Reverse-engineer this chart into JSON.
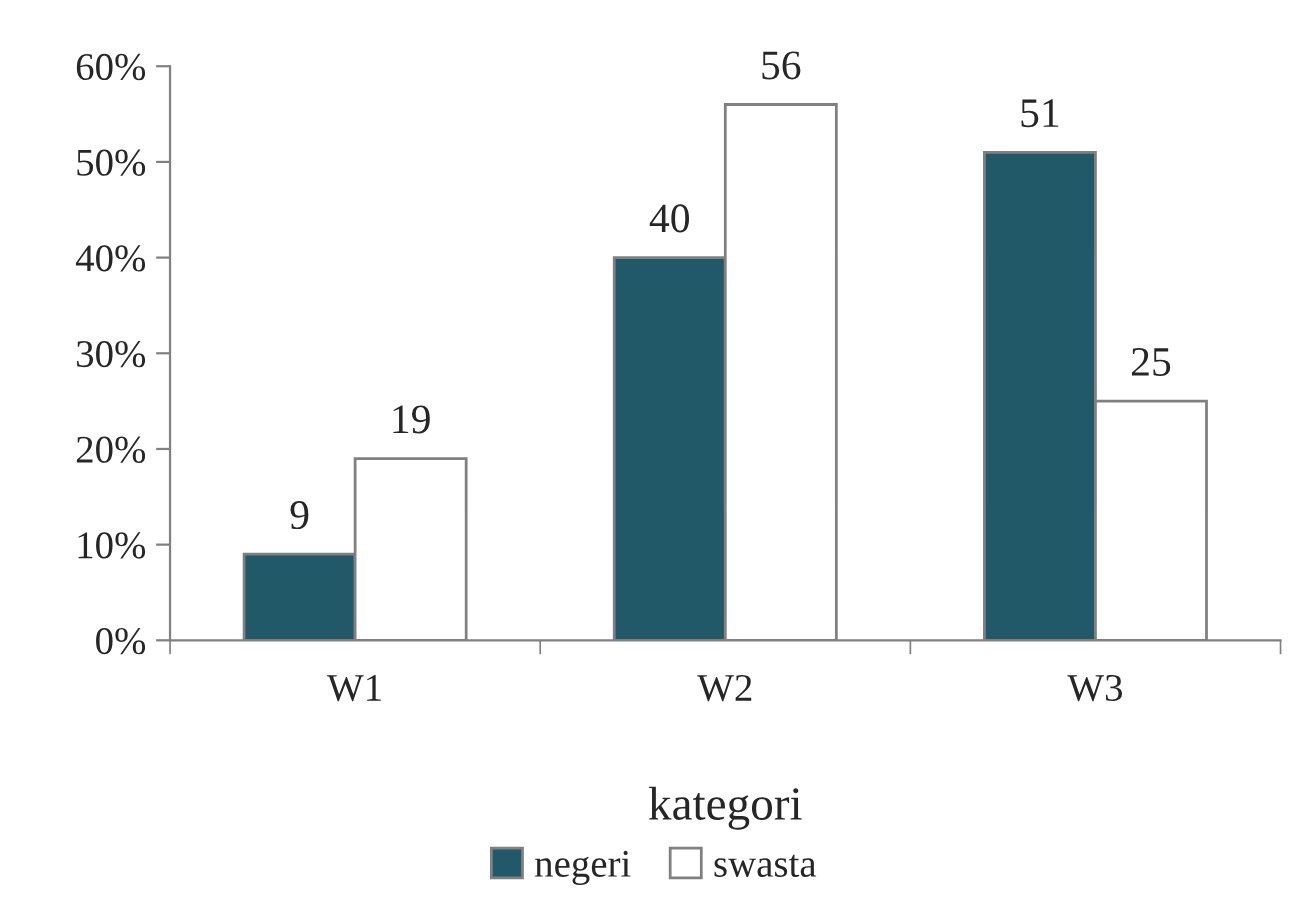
{
  "chart_data": {
    "type": "bar",
    "xlabel": "kategori",
    "categories": [
      "W1",
      "W2",
      "W3"
    ],
    "series": [
      {
        "name": "negeri",
        "color": "#215968",
        "values": [
          9,
          40,
          51
        ]
      },
      {
        "name": "swasta",
        "color": "#ffffff",
        "values": [
          19,
          56,
          25
        ]
      }
    ],
    "ylim": [
      0,
      60
    ],
    "yticks": [
      {
        "value": 0,
        "label": "0%"
      },
      {
        "value": 10,
        "label": "10%"
      },
      {
        "value": 20,
        "label": "20%"
      },
      {
        "value": 30,
        "label": "30%"
      },
      {
        "value": 40,
        "label": "40%"
      },
      {
        "value": 50,
        "label": "50%"
      },
      {
        "value": 60,
        "label": "60%"
      }
    ],
    "data_labels": true,
    "legend": "bottom",
    "grid": false
  }
}
